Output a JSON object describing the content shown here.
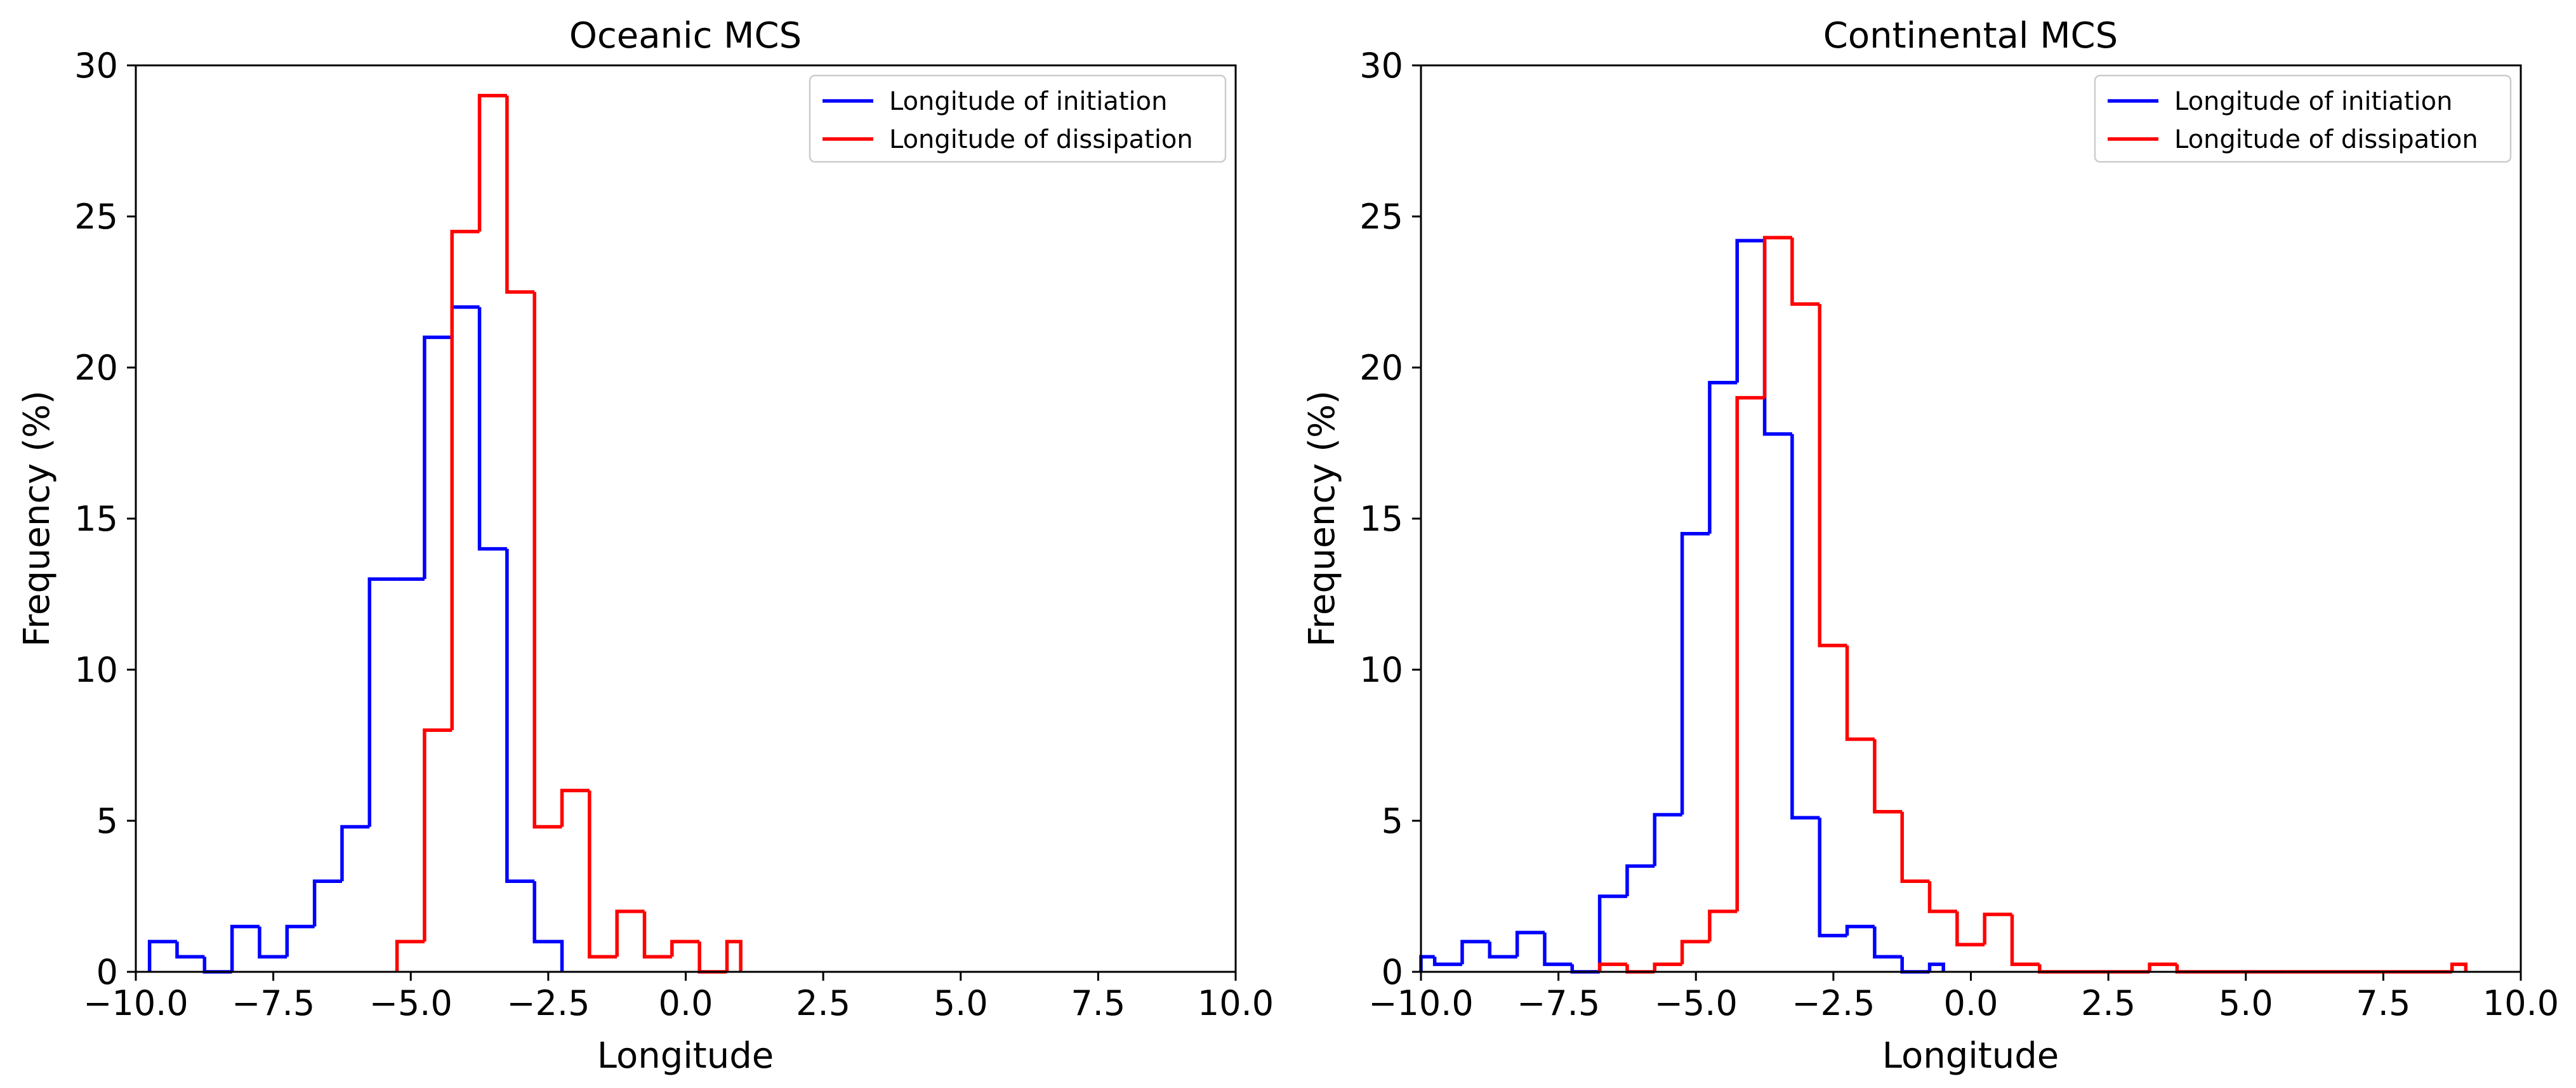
{
  "colors": {
    "initiation": "#0000ff",
    "dissipation": "#ff0000",
    "axes": "#000000"
  },
  "chart_data": [
    {
      "type": "histogram",
      "title": "Oceanic MCS",
      "xlabel": "Longitude",
      "ylabel": "Frequency (%)",
      "xlim": [
        -10.0,
        10.0
      ],
      "ylim": [
        0,
        30
      ],
      "xticks": [
        -10.0,
        -7.5,
        -5.0,
        -2.5,
        0.0,
        2.5,
        5.0,
        7.5,
        10.0
      ],
      "xtick_labels": [
        "−10.0",
        "−7.5",
        "−5.0",
        "−2.5",
        "0.0",
        "2.5",
        "5.0",
        "7.5",
        "10.0"
      ],
      "yticks": [
        0,
        5,
        10,
        15,
        20,
        25,
        30
      ],
      "ytick_labels": [
        "0",
        "5",
        "10",
        "15",
        "20",
        "25",
        "30"
      ],
      "legend": {
        "location": "top-right"
      },
      "series": [
        {
          "name": "Longitude of initiation",
          "color": "#0000ff",
          "edges": [
            -9.75,
            -9.25,
            -8.75,
            -8.25,
            -7.75,
            -7.25,
            -6.75,
            -6.25,
            -5.75,
            -5.25,
            -4.75,
            -4.25,
            -3.75,
            -3.25,
            -2.75,
            -2.25
          ],
          "values": [
            1.0,
            0.5,
            0,
            1.5,
            0.5,
            1.5,
            3.0,
            4.8,
            13.0,
            13.0,
            21.0,
            22.0,
            14.0,
            3.0,
            1.0
          ]
        },
        {
          "name": "Longitude of dissipation",
          "color": "#ff0000",
          "edges": [
            -5.25,
            -4.75,
            -4.25,
            -3.75,
            -3.25,
            -2.75,
            -2.25,
            -1.75,
            -1.25,
            -0.75,
            -0.25,
            0.25,
            0.75,
            1.0
          ],
          "values": [
            1.0,
            8.0,
            24.5,
            29.0,
            22.5,
            4.8,
            6.0,
            0.5,
            2.0,
            0.5,
            1.0,
            0,
            1.0
          ]
        }
      ]
    },
    {
      "type": "histogram",
      "title": "Continental MCS",
      "xlabel": "Longitude",
      "ylabel": "Frequency (%)",
      "xlim": [
        -10.0,
        10.0
      ],
      "ylim": [
        0,
        30
      ],
      "xticks": [
        -10.0,
        -7.5,
        -5.0,
        -2.5,
        0.0,
        2.5,
        5.0,
        7.5,
        10.0
      ],
      "xtick_labels": [
        "−10.0",
        "−7.5",
        "−5.0",
        "−2.5",
        "0.0",
        "2.5",
        "5.0",
        "7.5",
        "10.0"
      ],
      "yticks": [
        0,
        5,
        10,
        15,
        20,
        25,
        30
      ],
      "ytick_labels": [
        "0",
        "5",
        "10",
        "15",
        "20",
        "25",
        "30"
      ],
      "legend": {
        "location": "top-right"
      },
      "series": [
        {
          "name": "Longitude of initiation",
          "color": "#0000ff",
          "edges": [
            -10.0,
            -9.75,
            -9.25,
            -8.75,
            -8.25,
            -7.75,
            -7.25,
            -6.75,
            -6.25,
            -5.75,
            -5.25,
            -4.75,
            -4.25,
            -3.75,
            -3.25,
            -2.75,
            -2.25,
            -1.75,
            -1.25,
            -0.75,
            -0.5
          ],
          "values": [
            0.5,
            0.25,
            1.0,
            0.5,
            1.3,
            0.25,
            0,
            2.5,
            3.5,
            5.2,
            14.5,
            19.5,
            24.2,
            17.8,
            5.1,
            1.2,
            1.5,
            0.5,
            0,
            0.25
          ]
        },
        {
          "name": "Longitude of dissipation",
          "color": "#ff0000",
          "edges": [
            -6.75,
            -6.25,
            -5.75,
            -5.25,
            -4.75,
            -4.25,
            -3.75,
            -3.25,
            -2.75,
            -2.25,
            -1.75,
            -1.25,
            -0.75,
            -0.25,
            0.25,
            0.75,
            1.25,
            1.75,
            2.25,
            2.75,
            3.25,
            3.75,
            4.25,
            4.75,
            5.25,
            5.75,
            6.25,
            6.75,
            7.25,
            7.75,
            8.25,
            8.75,
            9.0
          ],
          "values": [
            0.25,
            0,
            0.25,
            1.0,
            2.0,
            19.0,
            24.3,
            22.1,
            10.8,
            7.7,
            5.3,
            3.0,
            2.0,
            0.9,
            1.9,
            0.25,
            0,
            0,
            0,
            0,
            0.25,
            0,
            0,
            0,
            0,
            0,
            0,
            0,
            0,
            0,
            0,
            0.25
          ]
        }
      ]
    }
  ]
}
